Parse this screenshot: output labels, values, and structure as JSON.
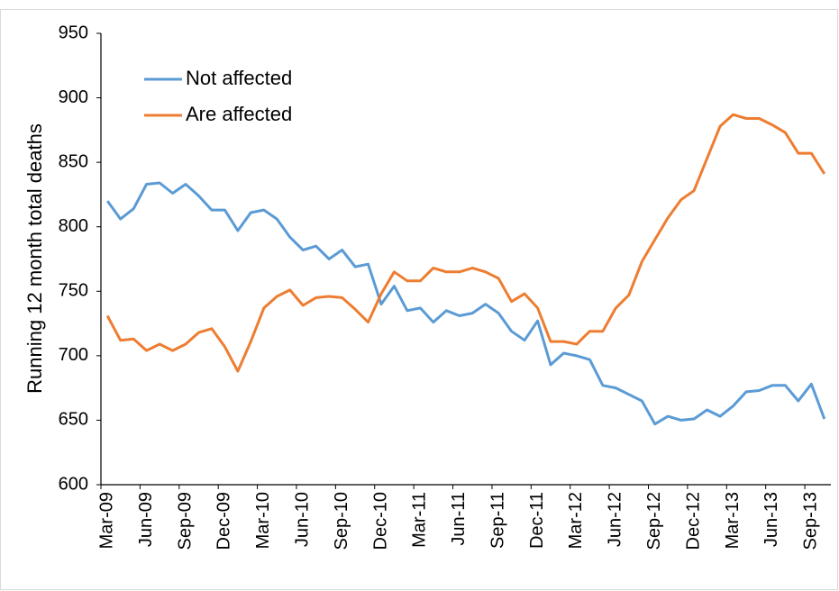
{
  "chart_data": {
    "type": "line",
    "y_label": "Running 12 month total deaths",
    "categories": [
      "Mar-09",
      null,
      null,
      "Jun-09",
      null,
      null,
      "Sep-09",
      null,
      null,
      "Dec-09",
      null,
      null,
      "Mar-10",
      null,
      null,
      "Jun-10",
      null,
      null,
      "Sep-10",
      null,
      null,
      "Dec-10",
      null,
      null,
      "Mar-11",
      null,
      null,
      "Jun-11",
      null,
      null,
      "Sep-11",
      null,
      null,
      "Dec-11",
      null,
      null,
      "Mar-12",
      null,
      null,
      "Jun-12",
      null,
      null,
      "Sep-12",
      null,
      null,
      "Dec-12",
      null,
      null,
      "Mar-13",
      null,
      null,
      "Jun-13",
      null,
      null,
      "Sep-13",
      null
    ],
    "series": [
      {
        "name": "Not affected",
        "color": "#5b9bd5",
        "values": [
          820,
          806,
          814,
          833,
          834,
          826,
          833,
          824,
          813,
          813,
          797,
          811,
          813,
          806,
          792,
          782,
          785,
          775,
          782,
          769,
          771,
          740,
          754,
          735,
          737,
          726,
          735,
          731,
          733,
          740,
          733,
          719,
          712,
          727,
          693,
          702,
          700,
          697,
          677,
          675,
          670,
          665,
          647,
          653,
          650,
          651,
          658,
          653,
          661,
          672,
          673,
          677,
          677,
          665,
          678,
          651
        ]
      },
      {
        "name": "Are affected",
        "color": "#ed7d31",
        "values": [
          731,
          712,
          713,
          704,
          709,
          704,
          709,
          718,
          721,
          707,
          688,
          711,
          737,
          746,
          751,
          739,
          745,
          746,
          745,
          736,
          726,
          748,
          765,
          758,
          758,
          768,
          765,
          765,
          768,
          765,
          760,
          742,
          748,
          737,
          711,
          711,
          709,
          719,
          719,
          737,
          747,
          773,
          790,
          807,
          821,
          828,
          853,
          878,
          887,
          884,
          884,
          879,
          873,
          857,
          857,
          841
        ]
      }
    ],
    "ylim": [
      600,
      950
    ],
    "yticks": [
      600,
      650,
      700,
      750,
      800,
      850,
      900,
      950
    ],
    "grid": false,
    "legend": "upper left"
  }
}
